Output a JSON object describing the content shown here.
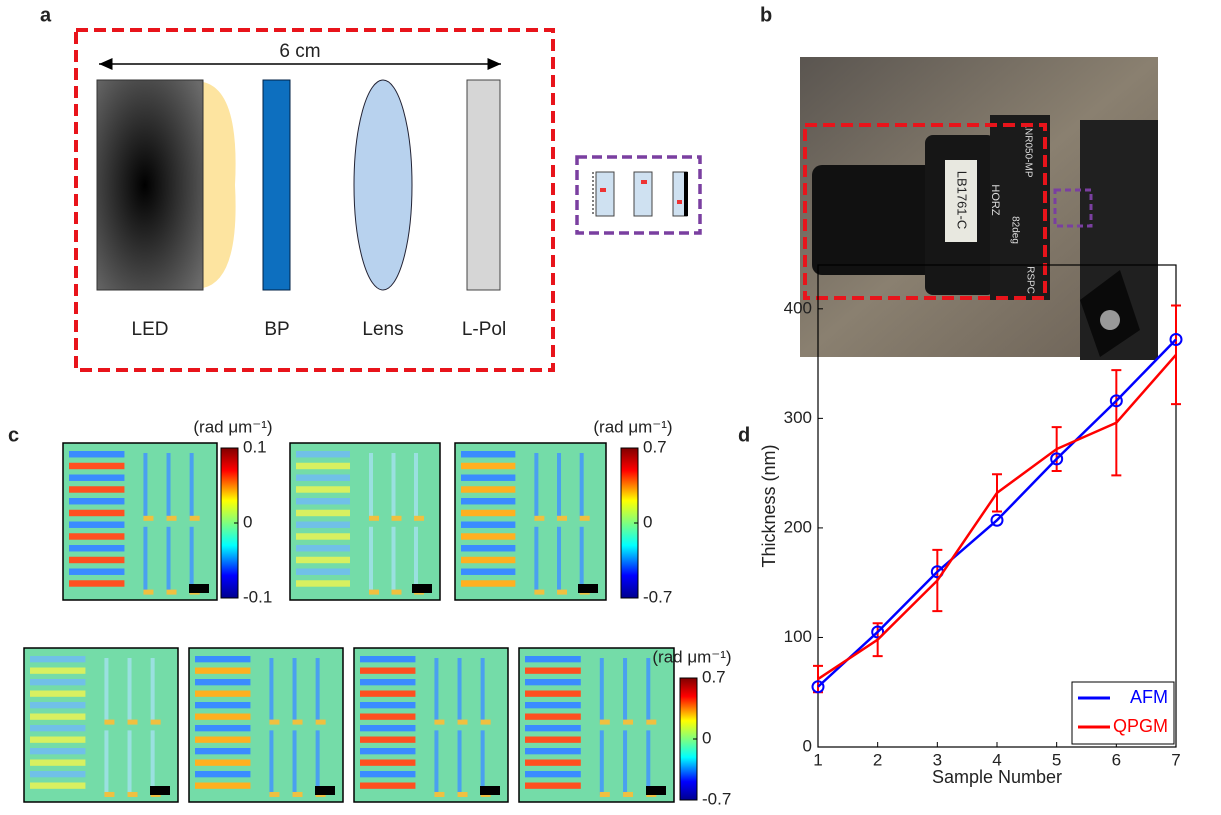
{
  "panel_labels": [
    "a",
    "b",
    "c",
    "d"
  ],
  "panel_a": {
    "scale": "6 cm",
    "components": [
      "LED",
      "BP",
      "Lens",
      "L-Pol"
    ]
  },
  "panel_b": {
    "photo_labels": [
      "LB1761-C",
      "HORZ",
      "82deg",
      "LNR050-MP",
      "RSPC"
    ]
  },
  "panel_c": {
    "colorbars": [
      {
        "unit": "(rad μm⁻¹)",
        "ticks": [
          0.1,
          0,
          -0.1
        ]
      },
      {
        "unit": "(rad μm⁻¹)",
        "ticks": [
          0.7,
          0,
          -0.7
        ]
      },
      {
        "unit": "(rad μm⁻¹)",
        "ticks": [
          0.7,
          0,
          -0.7
        ]
      }
    ]
  },
  "chart_data": {
    "type": "line",
    "x": [
      1,
      2,
      3,
      4,
      5,
      6,
      7
    ],
    "xlabel": "Sample Number",
    "ylabel": "Thickness (nm)",
    "xlim": [
      1,
      7
    ],
    "ylim": [
      0,
      440
    ],
    "xticks": [
      1,
      2,
      3,
      4,
      5,
      6,
      7
    ],
    "yticks": [
      0,
      100,
      200,
      300,
      400
    ],
    "legend": "lower right",
    "series": [
      {
        "name": "AFM",
        "color": "#0000ff",
        "marker": "o",
        "values": [
          55,
          105,
          160,
          207,
          263,
          316,
          372
        ]
      },
      {
        "name": "QPGM",
        "color": "#ff0000",
        "values": [
          62,
          98,
          152,
          232,
          272,
          296,
          358
        ],
        "errors": [
          12,
          15,
          28,
          17,
          20,
          48,
          45
        ]
      }
    ]
  }
}
